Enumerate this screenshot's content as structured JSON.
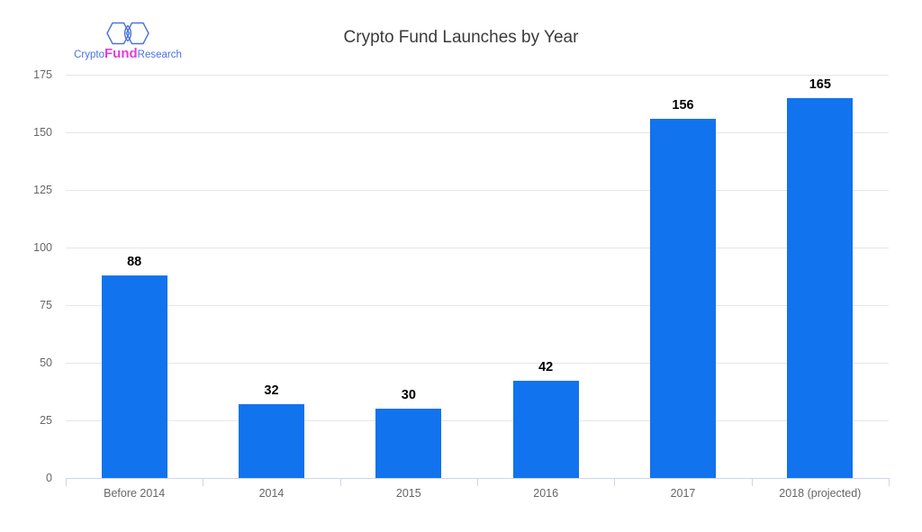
{
  "logo": {
    "crypto": "Crypto",
    "fund": "Fund",
    "research": "Research",
    "blue_color": "#4a72e0",
    "magenta_color": "#e23ed4"
  },
  "chart_data": {
    "type": "bar",
    "title": "Crypto Fund Launches by Year",
    "categories": [
      "Before 2014",
      "2014",
      "2015",
      "2016",
      "2017",
      "2018 (projected)"
    ],
    "values": [
      88,
      32,
      30,
      42,
      156,
      165
    ],
    "xlabel": "",
    "ylabel": "",
    "ylim": [
      0,
      175
    ],
    "yticks": [
      0,
      25,
      50,
      75,
      100,
      125,
      150,
      175
    ],
    "grid": "horizontal",
    "legend": "none",
    "bar_color": "#1173ee",
    "value_label_color": "#000000",
    "axis_text_color": "#666666",
    "grid_color": "#e6e6e6",
    "axis_line_color": "#ccd6eb",
    "title_color": "#3a3a3a"
  }
}
